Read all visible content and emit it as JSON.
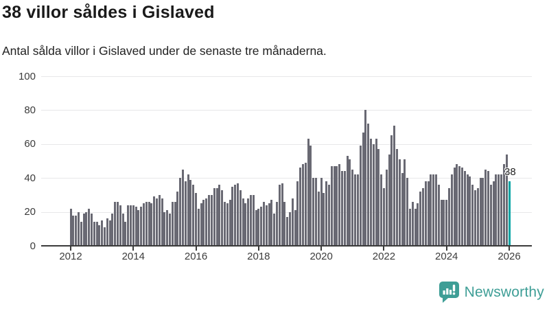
{
  "header": {
    "title": "38 villor såldes i Gislaved",
    "subtitle": "Antal sålda villor i Gislaved under de senaste tre månaderna."
  },
  "chart_data": {
    "type": "bar",
    "title": "38 villor såldes i Gislaved",
    "subtitle": "Antal sålda villor i Gislaved under de senaste tre månaderna.",
    "frequency": "monthly",
    "x_start": "2012-01",
    "x_end": "2026-01",
    "xlabel": "",
    "ylabel": "",
    "ylim": [
      0,
      100
    ],
    "grid": true,
    "yticks": [
      0,
      20,
      40,
      60,
      80,
      100
    ],
    "xticks": [
      "2012",
      "2014",
      "2016",
      "2018",
      "2020",
      "2022",
      "2024",
      "2026"
    ],
    "bar_color": "#696973",
    "highlight_color": "#00a2a2",
    "highlight_index": 168,
    "highlight_label": "38",
    "values": [
      22,
      18,
      18,
      20,
      14,
      19,
      20,
      22,
      19,
      14,
      14,
      12,
      15,
      11,
      16,
      15,
      19,
      26,
      26,
      24,
      19,
      14,
      24,
      24,
      24,
      23,
      21,
      23,
      25,
      26,
      26,
      25,
      29,
      28,
      30,
      28,
      20,
      21,
      19,
      26,
      26,
      32,
      40,
      45,
      38,
      42,
      39,
      36,
      31,
      22,
      25,
      27,
      28,
      30,
      30,
      34,
      34,
      36,
      33,
      26,
      25,
      27,
      35,
      36,
      37,
      33,
      28,
      25,
      28,
      30,
      30,
      21,
      22,
      23,
      26,
      24,
      25,
      27,
      19,
      26,
      36,
      37,
      26,
      17,
      20,
      28,
      21,
      38,
      46,
      48,
      49,
      63,
      59,
      40,
      40,
      32,
      40,
      31,
      38,
      36,
      47,
      47,
      47,
      48,
      44,
      44,
      53,
      51,
      45,
      42,
      42,
      59,
      67,
      80,
      72,
      63,
      60,
      63,
      57,
      42,
      34,
      45,
      54,
      65,
      71,
      57,
      51,
      43,
      51,
      40,
      22,
      26,
      22,
      25,
      32,
      34,
      38,
      38,
      42,
      42,
      42,
      36,
      27,
      27,
      27,
      34,
      42,
      46,
      48,
      47,
      46,
      44,
      42,
      41,
      36,
      33,
      34,
      40,
      40,
      45,
      44,
      36,
      38,
      42,
      42,
      42,
      48,
      54,
      38
    ]
  },
  "branding": {
    "logo_text": "Newsworthy",
    "logo_color": "#3e9e96"
  }
}
